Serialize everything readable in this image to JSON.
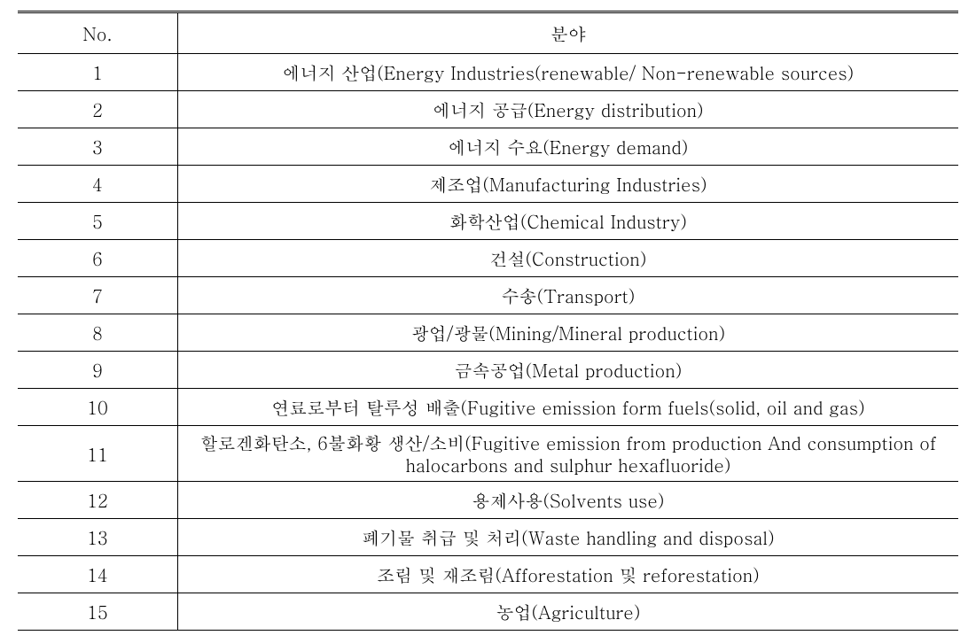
{
  "table": {
    "columns": [
      "No.",
      "분야"
    ],
    "rows": [
      {
        "no": "1",
        "field": "에너지 산업(Energy Industries(renewable/  Non-renewable sources)"
      },
      {
        "no": "2",
        "field": "에너지 공급(Energy distribution)"
      },
      {
        "no": "3",
        "field": "에너지 수요(Energy demand)"
      },
      {
        "no": "4",
        "field": "제조업(Manufacturing Industries)"
      },
      {
        "no": "5",
        "field": "화학산업(Chemical Industry)"
      },
      {
        "no": "6",
        "field": "건설(Construction)"
      },
      {
        "no": "7",
        "field": "수송(Transport)"
      },
      {
        "no": "8",
        "field": "광업/광물(Mining/Mineral production)"
      },
      {
        "no": "9",
        "field": "금속공업(Metal production)"
      },
      {
        "no": "10",
        "field": "연료로부터 탈루성 배출(Fugitive emission form fuels(solid, oil and gas)"
      },
      {
        "no": "11",
        "field": "할로겐화탄소, 6불화황 생산/소비(Fugitive emission from production And consumption of halocarbons and sulphur hexafluoride)"
      },
      {
        "no": "12",
        "field": "용제사용(Solvents use)"
      },
      {
        "no": "13",
        "field": "폐기물 취급 및 처리(Waste handling and disposal)"
      },
      {
        "no": "14",
        "field": "조림 및 재조림(Afforestation 및 reforestation)"
      },
      {
        "no": "15",
        "field": "농업(Agriculture)"
      }
    ],
    "col_widths": [
      "17%",
      "83%"
    ],
    "alignment": [
      "center",
      "center"
    ],
    "border_color": "#000000",
    "top_border": "double",
    "bottom_border": "solid",
    "font_size_pt": 15,
    "background_color": "#ffffff"
  }
}
